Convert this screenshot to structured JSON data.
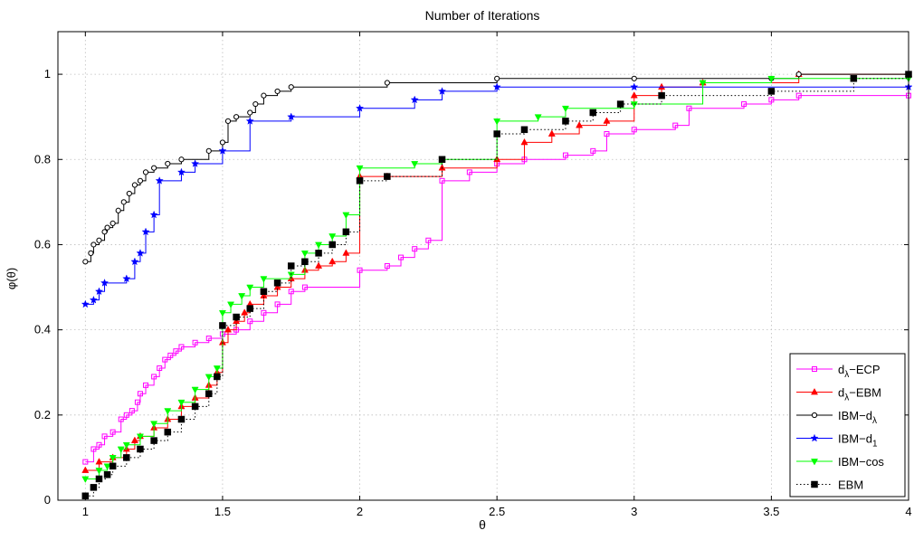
{
  "chart_data": {
    "type": "line",
    "title": "Number of Iterations",
    "xlabel": "θ",
    "ylabel": "φ(θ)",
    "xlim": [
      0.9,
      4.0
    ],
    "ylim": [
      0,
      1.1
    ],
    "grid": true,
    "legend_position": "bottom-right",
    "x_ticks": [
      1,
      1.5,
      2,
      2.5,
      3,
      3.5,
      4
    ],
    "x_tick_labels": [
      "1",
      "1.5",
      "2",
      "2.5",
      "3",
      "3.5",
      "4"
    ],
    "y_ticks": [
      0,
      0.2,
      0.4,
      0.6,
      0.8,
      1
    ],
    "y_tick_labels": [
      "0",
      "0.2",
      "0.4",
      "0.6",
      "0.8",
      "1"
    ],
    "series": [
      {
        "name": "dλ−ECP",
        "name_main": "d",
        "name_sub": "λ",
        "name_tail": "−ECP",
        "color": "#ff00ff",
        "dashed": false,
        "marker": "square",
        "points": [
          [
            1.0,
            0.09
          ],
          [
            1.03,
            0.12
          ],
          [
            1.05,
            0.13
          ],
          [
            1.07,
            0.15
          ],
          [
            1.1,
            0.16
          ],
          [
            1.13,
            0.19
          ],
          [
            1.15,
            0.2
          ],
          [
            1.17,
            0.21
          ],
          [
            1.19,
            0.23
          ],
          [
            1.2,
            0.25
          ],
          [
            1.22,
            0.27
          ],
          [
            1.25,
            0.29
          ],
          [
            1.27,
            0.31
          ],
          [
            1.29,
            0.33
          ],
          [
            1.31,
            0.34
          ],
          [
            1.33,
            0.35
          ],
          [
            1.35,
            0.36
          ],
          [
            1.4,
            0.37
          ],
          [
            1.45,
            0.38
          ],
          [
            1.5,
            0.39
          ],
          [
            1.55,
            0.4
          ],
          [
            1.6,
            0.42
          ],
          [
            1.65,
            0.44
          ],
          [
            1.7,
            0.46
          ],
          [
            1.75,
            0.49
          ],
          [
            1.8,
            0.5
          ],
          [
            2.0,
            0.54
          ],
          [
            2.1,
            0.55
          ],
          [
            2.15,
            0.57
          ],
          [
            2.2,
            0.59
          ],
          [
            2.25,
            0.61
          ],
          [
            2.3,
            0.75
          ],
          [
            2.4,
            0.77
          ],
          [
            2.5,
            0.79
          ],
          [
            2.6,
            0.8
          ],
          [
            2.75,
            0.81
          ],
          [
            2.85,
            0.82
          ],
          [
            2.9,
            0.86
          ],
          [
            3.0,
            0.87
          ],
          [
            3.15,
            0.88
          ],
          [
            3.2,
            0.92
          ],
          [
            3.4,
            0.93
          ],
          [
            3.5,
            0.94
          ],
          [
            3.6,
            0.95
          ],
          [
            4.0,
            0.95
          ]
        ]
      },
      {
        "name": "dλ−EBM",
        "name_main": "d",
        "name_sub": "λ",
        "name_tail": "−EBM",
        "color": "#ff0000",
        "dashed": false,
        "marker": "triangle",
        "points": [
          [
            1.0,
            0.07
          ],
          [
            1.05,
            0.09
          ],
          [
            1.1,
            0.1
          ],
          [
            1.15,
            0.12
          ],
          [
            1.18,
            0.14
          ],
          [
            1.2,
            0.15
          ],
          [
            1.25,
            0.17
          ],
          [
            1.3,
            0.19
          ],
          [
            1.35,
            0.22
          ],
          [
            1.4,
            0.24
          ],
          [
            1.45,
            0.27
          ],
          [
            1.48,
            0.3
          ],
          [
            1.5,
            0.37
          ],
          [
            1.52,
            0.4
          ],
          [
            1.55,
            0.42
          ],
          [
            1.58,
            0.44
          ],
          [
            1.6,
            0.46
          ],
          [
            1.65,
            0.48
          ],
          [
            1.7,
            0.5
          ],
          [
            1.75,
            0.52
          ],
          [
            1.8,
            0.54
          ],
          [
            1.85,
            0.55
          ],
          [
            1.9,
            0.56
          ],
          [
            1.95,
            0.58
          ],
          [
            2.0,
            0.76
          ],
          [
            2.1,
            0.76
          ],
          [
            2.3,
            0.78
          ],
          [
            2.5,
            0.8
          ],
          [
            2.6,
            0.84
          ],
          [
            2.7,
            0.86
          ],
          [
            2.8,
            0.88
          ],
          [
            2.9,
            0.89
          ],
          [
            3.0,
            0.95
          ],
          [
            3.1,
            0.97
          ],
          [
            3.25,
            0.98
          ],
          [
            3.6,
            1.0
          ],
          [
            4.0,
            1.0
          ]
        ]
      },
      {
        "name": "IBM−dλ",
        "name_main": "IBM−d",
        "name_sub": "λ",
        "name_tail": "",
        "color": "#000000",
        "dashed": false,
        "marker": "circle",
        "points": [
          [
            1.0,
            0.56
          ],
          [
            1.02,
            0.58
          ],
          [
            1.03,
            0.6
          ],
          [
            1.05,
            0.61
          ],
          [
            1.07,
            0.63
          ],
          [
            1.08,
            0.64
          ],
          [
            1.1,
            0.65
          ],
          [
            1.12,
            0.68
          ],
          [
            1.14,
            0.7
          ],
          [
            1.16,
            0.72
          ],
          [
            1.18,
            0.74
          ],
          [
            1.2,
            0.75
          ],
          [
            1.22,
            0.77
          ],
          [
            1.25,
            0.78
          ],
          [
            1.3,
            0.79
          ],
          [
            1.35,
            0.8
          ],
          [
            1.45,
            0.82
          ],
          [
            1.5,
            0.84
          ],
          [
            1.52,
            0.89
          ],
          [
            1.55,
            0.9
          ],
          [
            1.6,
            0.91
          ],
          [
            1.62,
            0.93
          ],
          [
            1.65,
            0.95
          ],
          [
            1.7,
            0.96
          ],
          [
            1.75,
            0.97
          ],
          [
            2.1,
            0.98
          ],
          [
            2.5,
            0.99
          ],
          [
            3.0,
            0.99
          ],
          [
            3.5,
            0.99
          ],
          [
            3.6,
            1.0
          ],
          [
            4.0,
            1.0
          ]
        ]
      },
      {
        "name": "IBM−d1",
        "name_main": "IBM−d",
        "name_sub": "1",
        "name_tail": "",
        "color": "#0000ff",
        "dashed": false,
        "marker": "star",
        "points": [
          [
            1.0,
            0.46
          ],
          [
            1.03,
            0.47
          ],
          [
            1.05,
            0.49
          ],
          [
            1.07,
            0.51
          ],
          [
            1.15,
            0.52
          ],
          [
            1.18,
            0.56
          ],
          [
            1.2,
            0.58
          ],
          [
            1.22,
            0.63
          ],
          [
            1.25,
            0.67
          ],
          [
            1.27,
            0.75
          ],
          [
            1.35,
            0.77
          ],
          [
            1.4,
            0.79
          ],
          [
            1.5,
            0.82
          ],
          [
            1.6,
            0.89
          ],
          [
            1.75,
            0.9
          ],
          [
            2.0,
            0.92
          ],
          [
            2.2,
            0.94
          ],
          [
            2.3,
            0.96
          ],
          [
            2.5,
            0.97
          ],
          [
            3.0,
            0.97
          ],
          [
            4.0,
            0.97
          ]
        ]
      },
      {
        "name": "IBM−cos",
        "name_main": "IBM−cos",
        "name_sub": "",
        "name_tail": "",
        "color": "#00ff00",
        "dashed": false,
        "marker": "triangle-down",
        "points": [
          [
            1.0,
            0.05
          ],
          [
            1.05,
            0.07
          ],
          [
            1.08,
            0.08
          ],
          [
            1.1,
            0.1
          ],
          [
            1.13,
            0.12
          ],
          [
            1.15,
            0.13
          ],
          [
            1.2,
            0.15
          ],
          [
            1.25,
            0.18
          ],
          [
            1.3,
            0.21
          ],
          [
            1.35,
            0.23
          ],
          [
            1.4,
            0.26
          ],
          [
            1.45,
            0.29
          ],
          [
            1.48,
            0.31
          ],
          [
            1.5,
            0.44
          ],
          [
            1.53,
            0.46
          ],
          [
            1.57,
            0.48
          ],
          [
            1.6,
            0.5
          ],
          [
            1.65,
            0.52
          ],
          [
            1.75,
            0.53
          ],
          [
            1.8,
            0.58
          ],
          [
            1.85,
            0.6
          ],
          [
            1.9,
            0.62
          ],
          [
            1.95,
            0.67
          ],
          [
            2.0,
            0.78
          ],
          [
            2.2,
            0.79
          ],
          [
            2.3,
            0.8
          ],
          [
            2.5,
            0.89
          ],
          [
            2.65,
            0.9
          ],
          [
            2.75,
            0.92
          ],
          [
            3.0,
            0.93
          ],
          [
            3.25,
            0.98
          ],
          [
            3.5,
            0.99
          ],
          [
            4.0,
            0.99
          ]
        ]
      },
      {
        "name": "EBM",
        "name_main": "EBM",
        "name_sub": "",
        "name_tail": "",
        "color": "#000000",
        "dashed": true,
        "marker": "square-filled",
        "points": [
          [
            1.0,
            0.01
          ],
          [
            1.03,
            0.03
          ],
          [
            1.05,
            0.05
          ],
          [
            1.08,
            0.06
          ],
          [
            1.1,
            0.08
          ],
          [
            1.15,
            0.1
          ],
          [
            1.2,
            0.12
          ],
          [
            1.25,
            0.14
          ],
          [
            1.3,
            0.16
          ],
          [
            1.35,
            0.19
          ],
          [
            1.4,
            0.22
          ],
          [
            1.45,
            0.25
          ],
          [
            1.48,
            0.29
          ],
          [
            1.5,
            0.41
          ],
          [
            1.55,
            0.43
          ],
          [
            1.6,
            0.45
          ],
          [
            1.65,
            0.49
          ],
          [
            1.7,
            0.51
          ],
          [
            1.75,
            0.55
          ],
          [
            1.8,
            0.56
          ],
          [
            1.85,
            0.58
          ],
          [
            1.9,
            0.6
          ],
          [
            1.95,
            0.63
          ],
          [
            2.0,
            0.75
          ],
          [
            2.1,
            0.76
          ],
          [
            2.3,
            0.8
          ],
          [
            2.5,
            0.86
          ],
          [
            2.6,
            0.87
          ],
          [
            2.75,
            0.89
          ],
          [
            2.85,
            0.91
          ],
          [
            2.95,
            0.93
          ],
          [
            3.1,
            0.95
          ],
          [
            3.5,
            0.96
          ],
          [
            3.8,
            0.99
          ],
          [
            4.0,
            1.0
          ]
        ]
      }
    ]
  }
}
